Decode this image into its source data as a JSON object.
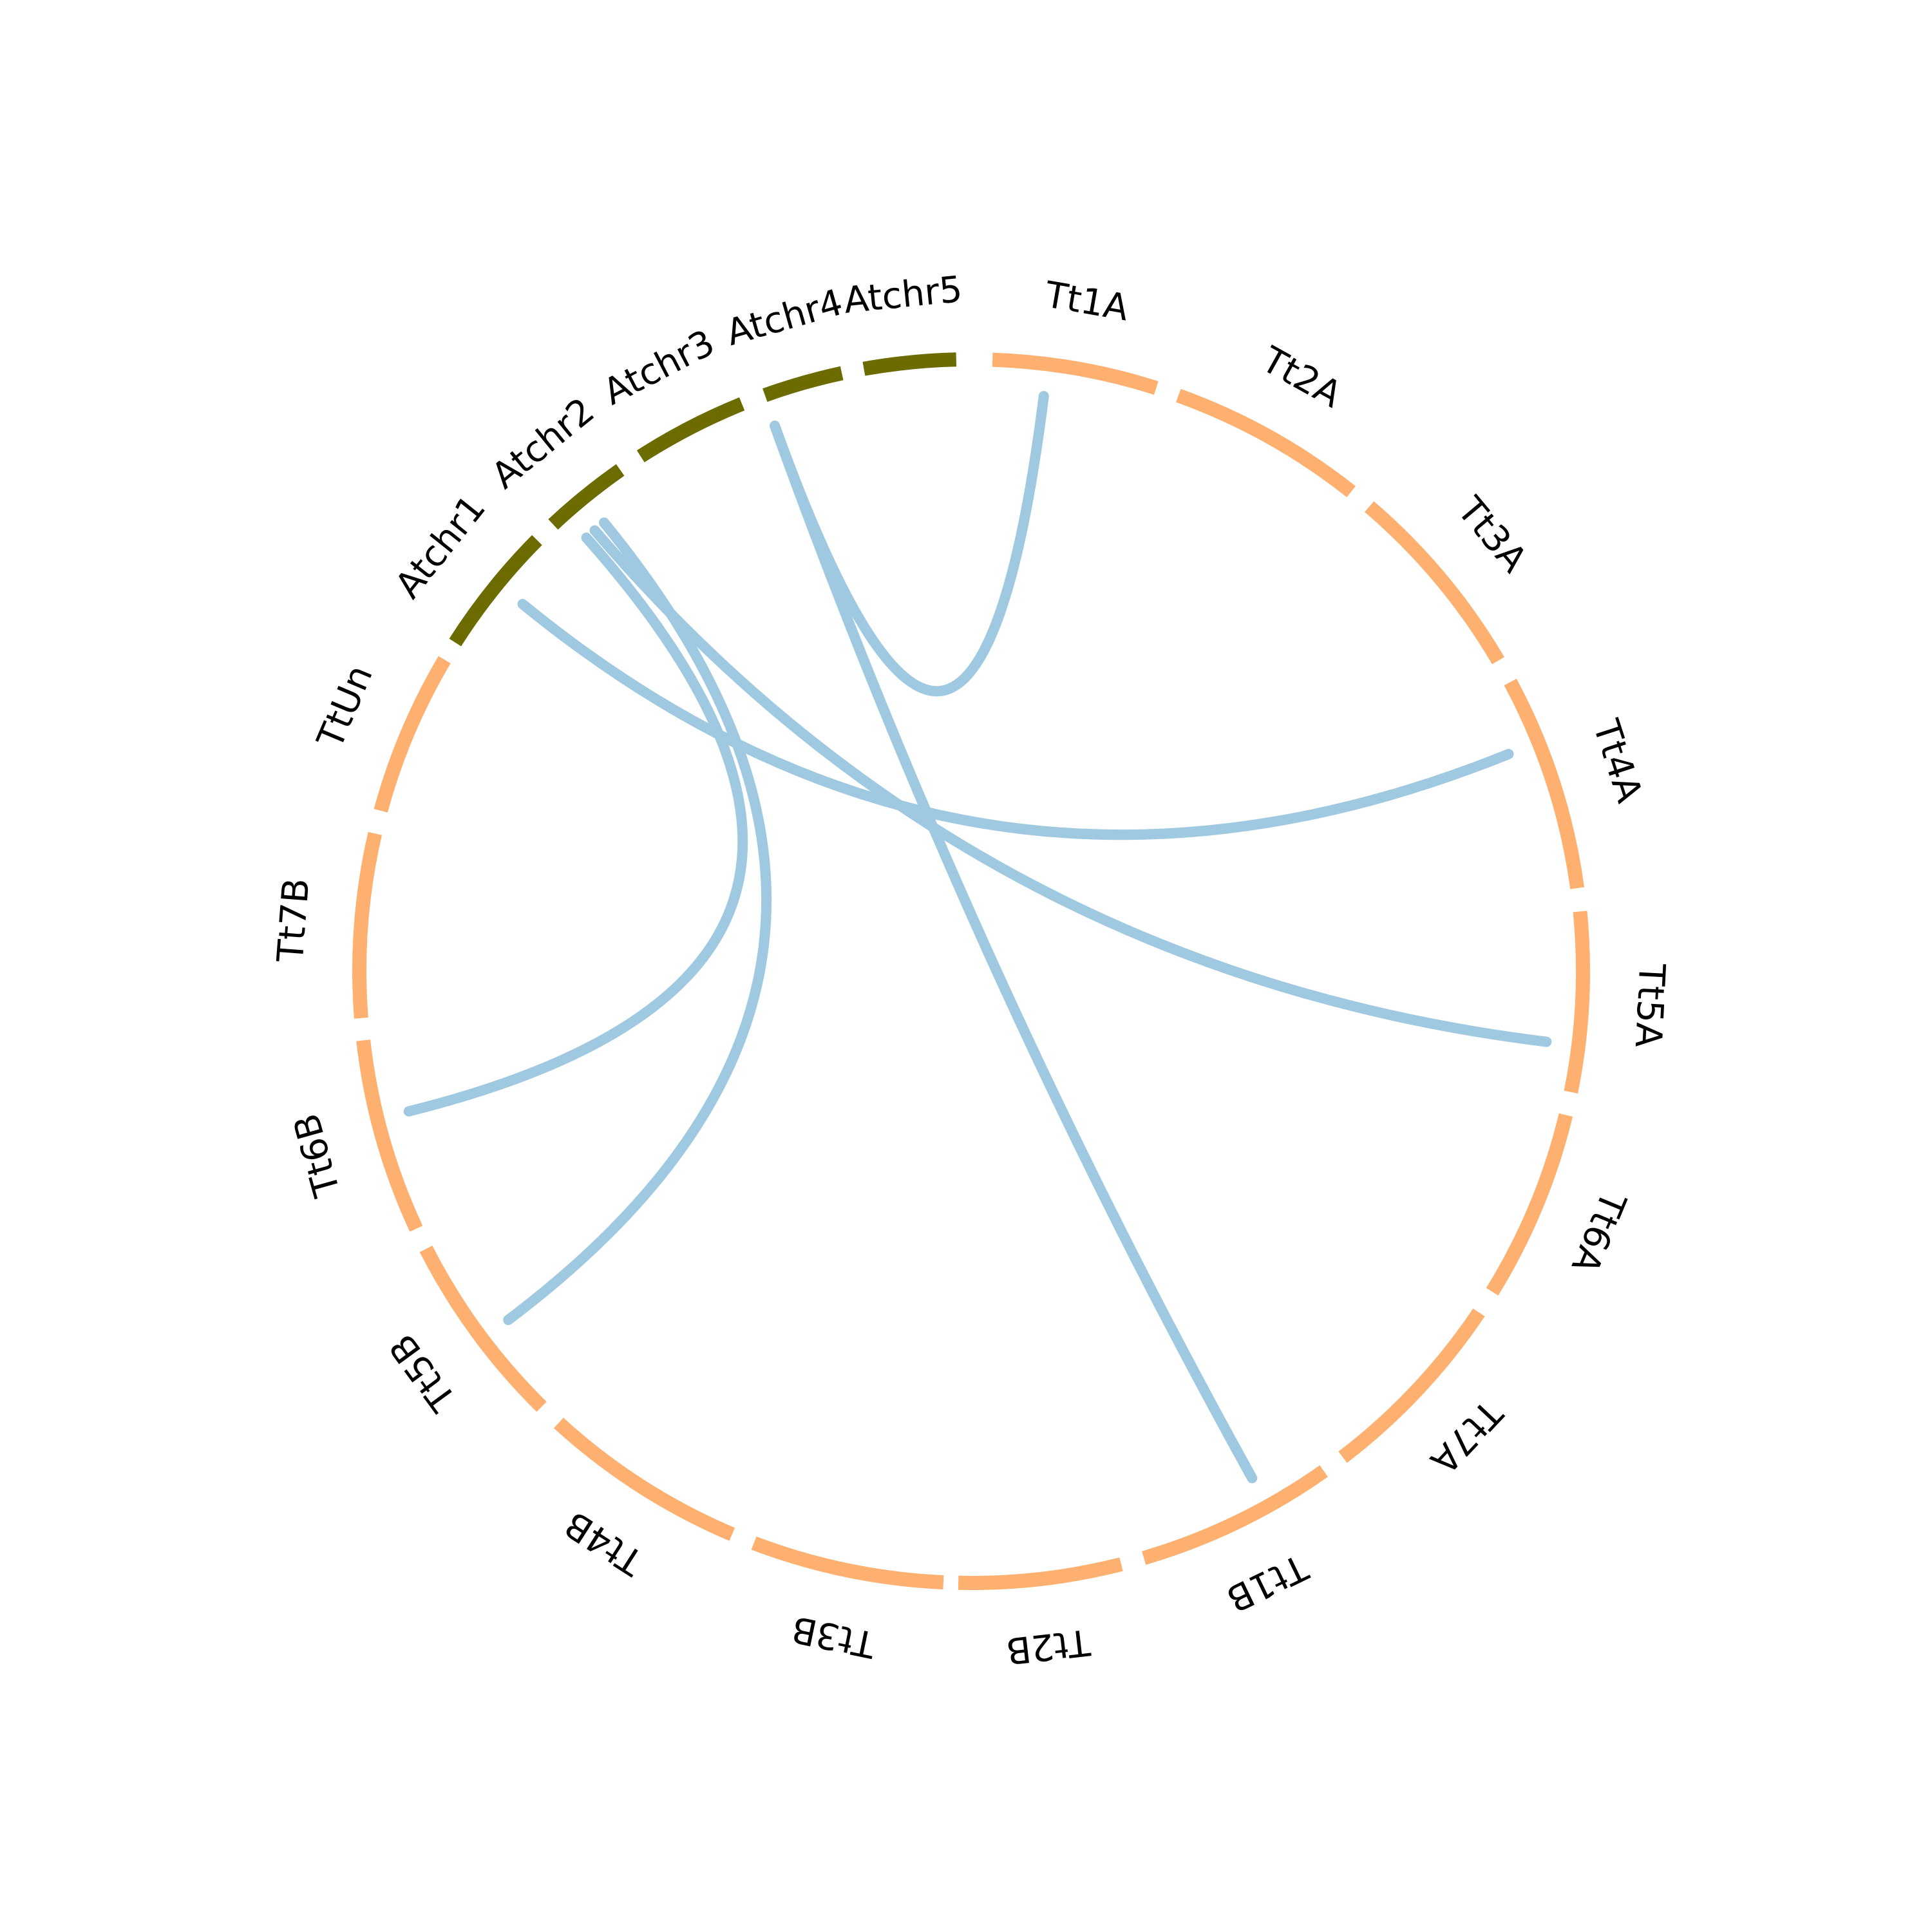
{
  "chart_data": {
    "type": "chord",
    "colors": {
      "tt_segment": "#FDB06F",
      "at_segment": "#6B6B00",
      "link": "#9FC9E1",
      "label": "#000000"
    },
    "segments": [
      {
        "label": "Tt1A",
        "group": "Tt"
      },
      {
        "label": "Tt2A",
        "group": "Tt"
      },
      {
        "label": "Tt3A",
        "group": "Tt"
      },
      {
        "label": "Tt4A",
        "group": "Tt"
      },
      {
        "label": "Tt5A",
        "group": "Tt"
      },
      {
        "label": "Tt6A",
        "group": "Tt"
      },
      {
        "label": "Tt7A",
        "group": "Tt"
      },
      {
        "label": "Tt1B",
        "group": "Tt"
      },
      {
        "label": "Tt2B",
        "group": "Tt"
      },
      {
        "label": "Tt3B",
        "group": "Tt"
      },
      {
        "label": "Tt4B",
        "group": "Tt"
      },
      {
        "label": "Tt5B",
        "group": "Tt"
      },
      {
        "label": "Tt6B",
        "group": "Tt"
      },
      {
        "label": "Tt7B",
        "group": "Tt"
      },
      {
        "label": "TtUn",
        "group": "Tt"
      },
      {
        "label": "Atchr1",
        "group": "At"
      },
      {
        "label": "Atchr2",
        "group": "At"
      },
      {
        "label": "Atchr3",
        "group": "At"
      },
      {
        "label": "Atchr4",
        "group": "At"
      },
      {
        "label": "Atchr5",
        "group": "At"
      }
    ],
    "links": [
      {
        "from": "Atchr4",
        "to": "Tt1A"
      },
      {
        "from": "Atchr4",
        "to": "Tt1B"
      },
      {
        "from": "Atchr1",
        "to": "Tt4A"
      },
      {
        "from": "Atchr2",
        "to": "Tt5A"
      },
      {
        "from": "Atchr2",
        "to": "Tt6B"
      },
      {
        "from": "Atchr2",
        "to": "Tt5B"
      }
    ]
  }
}
